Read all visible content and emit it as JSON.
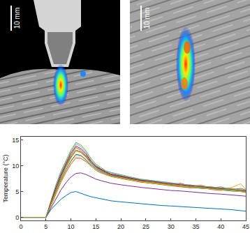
{
  "images": [
    {
      "scale_bar": "10 mm"
    },
    {
      "scale_bar": "10 mm"
    }
  ],
  "chart_data": {
    "type": "line",
    "y_label": "Temperature (°C)",
    "xlim": [
      0,
      45
    ],
    "xticks": [
      0,
      5,
      10,
      15,
      20,
      25,
      30,
      35,
      40,
      45
    ],
    "ylim": [
      -0.6,
      15.6
    ],
    "yticks": [
      0,
      5,
      10,
      15
    ],
    "grid": false,
    "x": [
      0,
      5,
      6,
      7,
      8,
      9,
      10,
      11,
      12,
      13,
      14,
      15,
      16,
      17,
      18,
      20,
      22,
      24,
      26,
      28,
      30,
      32,
      34,
      36,
      38,
      40,
      42,
      44,
      45
    ],
    "series": [
      {
        "color": "#0072BD",
        "values": [
          0,
          0,
          1.5,
          2.5,
          3.5,
          4.2,
          4.8,
          5,
          4.6,
          4.3,
          4,
          3.8,
          3.6,
          3.4,
          3.2,
          3,
          2.8,
          2.6,
          2.5,
          2.3,
          2.2,
          2.1,
          2,
          1.9,
          1.7,
          1.6,
          1.5,
          1.3,
          1.2
        ]
      },
      {
        "color": "#D95319",
        "values": [
          0,
          0,
          2.8,
          5.5,
          8,
          10.2,
          12,
          13.5,
          13,
          12,
          10.8,
          9.8,
          9.2,
          8.7,
          8.3,
          7.9,
          7.5,
          7.1,
          6.9,
          6.6,
          6.4,
          6.6,
          6,
          6.2,
          5.7,
          5.9,
          5.4,
          5.6,
          5.3
        ]
      },
      {
        "color": "#EDB120",
        "values": [
          0,
          0,
          2.5,
          5,
          7.5,
          9.6,
          11.4,
          12.8,
          12.5,
          11.6,
          10.5,
          9.6,
          9,
          8.5,
          8.1,
          7.7,
          7.3,
          7,
          6.8,
          6.4,
          6.6,
          6.1,
          6.3,
          5.8,
          6,
          5.5,
          5.7,
          6.5,
          5.4
        ]
      },
      {
        "color": "#7E2F8E",
        "values": [
          0,
          0,
          2.7,
          5.3,
          7.8,
          9.9,
          11.7,
          13,
          12.7,
          11.8,
          10.6,
          9.7,
          9.1,
          8.6,
          8.2,
          7.8,
          7.4,
          7.1,
          6.8,
          6.5,
          6.3,
          6.1,
          5.9,
          5.8,
          5.6,
          5.4,
          5.3,
          5.1,
          5
        ]
      },
      {
        "color": "#77AC30",
        "values": [
          0,
          0,
          3.2,
          6.3,
          8.9,
          11,
          13,
          14.5,
          14,
          12.9,
          11.4,
          10.3,
          9.6,
          9,
          8.7,
          8.2,
          7.8,
          7.4,
          7.2,
          6.9,
          6.7,
          6.4,
          6.2,
          6.1,
          5.9,
          5.7,
          5.6,
          5.4,
          5.2
        ]
      },
      {
        "color": "#4DBEEE",
        "values": [
          0,
          0,
          3,
          6,
          8.6,
          10.7,
          12.7,
          14.2,
          13.7,
          12.6,
          11.1,
          10.1,
          9.4,
          8.9,
          8.6,
          8.1,
          7.7,
          7.3,
          7.1,
          6.9,
          6.6,
          6.4,
          6.2,
          6,
          5.9,
          5.7,
          5.5,
          5.4,
          5.3
        ]
      },
      {
        "color": "#A2142F",
        "values": [
          0,
          0,
          2.9,
          5.8,
          8.3,
          10.4,
          12.4,
          13.8,
          13.3,
          12.3,
          10.9,
          9.9,
          9.3,
          8.8,
          8.4,
          8,
          7.6,
          7.2,
          7,
          6.7,
          6.5,
          6.3,
          6.1,
          5.9,
          5.8,
          5.6,
          5.4,
          5.2,
          5.1
        ]
      },
      {
        "color": "#0072BD",
        "values": [
          0,
          0,
          2.4,
          4.8,
          7.2,
          9.2,
          10.9,
          12.2,
          12,
          11.2,
          10.2,
          9.4,
          8.8,
          8.3,
          8,
          7.6,
          7.2,
          6.9,
          6.6,
          6.4,
          6.1,
          6,
          5.8,
          5.6,
          5.5,
          5.3,
          5.1,
          5,
          4.9
        ]
      },
      {
        "color": "#D95319",
        "values": [
          0,
          0,
          2.2,
          4.5,
          6.8,
          8.7,
          10.3,
          11.5,
          11.4,
          10.8,
          9.9,
          9.1,
          8.6,
          8.2,
          7.9,
          7.5,
          7.1,
          6.8,
          6.6,
          6.3,
          6.1,
          5.9,
          5.7,
          5.9,
          5.4,
          5.2,
          5.5,
          5,
          4.8
        ]
      },
      {
        "color": "#EDB120",
        "values": [
          0,
          0,
          2.3,
          4.7,
          7,
          9,
          10.7,
          12,
          11.8,
          11,
          10,
          9.2,
          8.7,
          8.2,
          7.9,
          7.5,
          7.2,
          6.9,
          6.6,
          6.4,
          6.2,
          6,
          5.8,
          5.6,
          5.5,
          5.3,
          5.2,
          5,
          4.9
        ]
      },
      {
        "color": "#7E2F8E",
        "values": [
          0,
          0,
          1.8,
          3.6,
          5.3,
          6.7,
          7.8,
          8.5,
          8.6,
          8.3,
          7.8,
          7.4,
          7.1,
          6.8,
          6.6,
          6.3,
          6,
          5.8,
          5.6,
          5.4,
          5.2,
          5.1,
          4.9,
          4.8,
          4.6,
          4.5,
          4.3,
          4.2,
          4.1
        ]
      },
      {
        "color": "#77AC30",
        "values": [
          0,
          0,
          2.6,
          5.2,
          7.7,
          9.8,
          11.6,
          13,
          12.6,
          11.7,
          10.5,
          9.6,
          9,
          8.5,
          8.1,
          7.7,
          7.3,
          7,
          6.8,
          6.5,
          6.3,
          6.1,
          5.9,
          5.7,
          5.6,
          5.4,
          5.3,
          5.1,
          5
        ]
      }
    ]
  }
}
